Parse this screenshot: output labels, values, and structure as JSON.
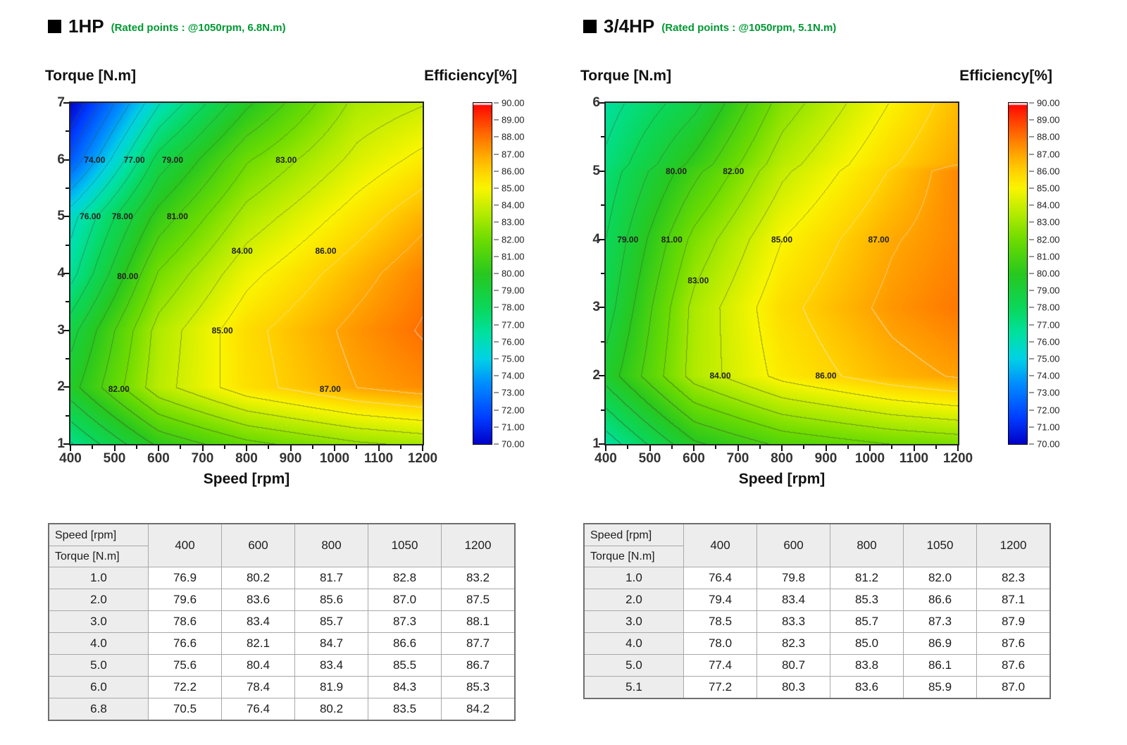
{
  "colorbar": {
    "title": "Efficiency[%]",
    "min": 70,
    "max": 90,
    "tick_step": 1,
    "colormap": [
      [
        70.0,
        "#0000c8"
      ],
      [
        71.5,
        "#003cff"
      ],
      [
        73.5,
        "#008cff"
      ],
      [
        75.0,
        "#00d2e6"
      ],
      [
        76.5,
        "#00e1a0"
      ],
      [
        78.0,
        "#0ad75a"
      ],
      [
        80.0,
        "#28c81e"
      ],
      [
        82.0,
        "#6edc00"
      ],
      [
        83.5,
        "#b4eb00"
      ],
      [
        85.0,
        "#faf500"
      ],
      [
        86.0,
        "#ffd200"
      ],
      [
        87.0,
        "#ffa500"
      ],
      [
        88.0,
        "#ff7300"
      ],
      [
        89.0,
        "#ff3c00"
      ],
      [
        90.0,
        "#ff0000"
      ]
    ]
  },
  "panels": [
    {
      "title": "1HP",
      "rated_note": "(Rated points : @1050rpm, 6.8N.m)",
      "y_title": "Torque [N.m]",
      "x_title": "Speed [rpm]",
      "cb_title": "Efficiency[%]",
      "table": {
        "row_header": "Speed [rpm]",
        "col_header": "Torque  [N.m]"
      }
    },
    {
      "title": "3/4HP",
      "rated_note": "(Rated points : @1050rpm, 5.1N.m)",
      "y_title": "Torque [N.m]",
      "x_title": "Speed [rpm]",
      "cb_title": "Efficiency[%]",
      "table": {
        "row_header": "Speed [rpm]",
        "col_header": "Torque  [N.m]"
      }
    }
  ],
  "chart_data": [
    {
      "type": "heatmap",
      "title": "1HP efficiency contour map",
      "xlabel": "Speed [rpm]",
      "ylabel": "Torque [N.m]",
      "zlabel": "Efficiency[%]",
      "x": [
        400,
        600,
        800,
        1050,
        1200
      ],
      "y": [
        1.0,
        2.0,
        3.0,
        4.0,
        5.0,
        6.0,
        6.8
      ],
      "z": [
        [
          76.9,
          80.2,
          81.7,
          82.8,
          83.2
        ],
        [
          79.6,
          83.6,
          85.6,
          87.0,
          87.5
        ],
        [
          78.6,
          83.4,
          85.7,
          87.3,
          88.1
        ],
        [
          76.6,
          82.1,
          84.7,
          86.6,
          87.7
        ],
        [
          75.6,
          80.4,
          83.4,
          85.5,
          86.7
        ],
        [
          72.2,
          78.4,
          81.9,
          84.3,
          85.3
        ],
        [
          70.5,
          76.4,
          80.2,
          83.5,
          84.2
        ]
      ],
      "xlim": [
        400,
        1200
      ],
      "ylim": [
        1,
        7
      ],
      "zlim": [
        70,
        90
      ],
      "contour_interval": 1.0,
      "x_ticks": [
        400,
        500,
        600,
        700,
        800,
        900,
        1000,
        1100,
        1200
      ],
      "y_ticks": [
        1,
        2,
        3,
        4,
        5,
        6,
        7
      ],
      "annotations": [
        {
          "text": "74.00",
          "x": 455,
          "y": 6.0
        },
        {
          "text": "77.00",
          "x": 545,
          "y": 6.0
        },
        {
          "text": "79.00",
          "x": 632,
          "y": 6.0
        },
        {
          "text": "83.00",
          "x": 890,
          "y": 6.0
        },
        {
          "text": "76.00",
          "x": 445,
          "y": 5.0
        },
        {
          "text": "78.00",
          "x": 518,
          "y": 5.0
        },
        {
          "text": "81.00",
          "x": 643,
          "y": 5.0
        },
        {
          "text": "84.00",
          "x": 790,
          "y": 4.4
        },
        {
          "text": "86.00",
          "x": 980,
          "y": 4.4
        },
        {
          "text": "80.00",
          "x": 530,
          "y": 3.95
        },
        {
          "text": "85.00",
          "x": 745,
          "y": 3.0
        },
        {
          "text": "82.00",
          "x": 510,
          "y": 1.97
        },
        {
          "text": "87.00",
          "x": 990,
          "y": 1.97
        }
      ]
    },
    {
      "type": "heatmap",
      "title": "3/4HP efficiency contour map",
      "xlabel": "Speed [rpm]",
      "ylabel": "Torque [N.m]",
      "zlabel": "Efficiency[%]",
      "x": [
        400,
        600,
        800,
        1050,
        1200
      ],
      "y": [
        1.0,
        2.0,
        3.0,
        4.0,
        5.0,
        5.1
      ],
      "z": [
        [
          76.4,
          79.8,
          81.2,
          82.0,
          82.3
        ],
        [
          79.4,
          83.4,
          85.3,
          86.6,
          87.1
        ],
        [
          78.5,
          83.3,
          85.7,
          87.3,
          87.9
        ],
        [
          78.0,
          82.3,
          85.0,
          86.9,
          87.6
        ],
        [
          77.4,
          80.7,
          83.8,
          86.1,
          87.6
        ],
        [
          77.2,
          80.3,
          83.6,
          85.9,
          87.0
        ]
      ],
      "xlim": [
        400,
        1200
      ],
      "ylim": [
        1,
        6
      ],
      "zlim": [
        70,
        90
      ],
      "contour_interval": 1.0,
      "x_ticks": [
        400,
        500,
        600,
        700,
        800,
        900,
        1000,
        1100,
        1200
      ],
      "y_ticks": [
        1,
        2,
        3,
        4,
        5,
        6
      ],
      "annotations": [
        {
          "text": "80.00",
          "x": 560,
          "y": 5.0
        },
        {
          "text": "82.00",
          "x": 690,
          "y": 5.0
        },
        {
          "text": "79.00",
          "x": 450,
          "y": 4.0
        },
        {
          "text": "81.00",
          "x": 550,
          "y": 4.0
        },
        {
          "text": "85.00",
          "x": 800,
          "y": 4.0
        },
        {
          "text": "87.00",
          "x": 1020,
          "y": 4.0
        },
        {
          "text": "83.00",
          "x": 610,
          "y": 3.4
        },
        {
          "text": "84.00",
          "x": 660,
          "y": 2.0
        },
        {
          "text": "86.00",
          "x": 900,
          "y": 2.0
        }
      ]
    }
  ]
}
